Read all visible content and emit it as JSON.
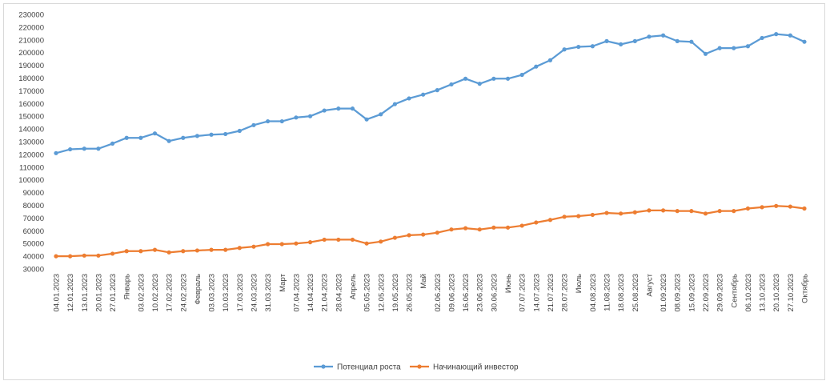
{
  "chart_data": {
    "type": "line",
    "title": "",
    "xlabel": "",
    "ylabel": "",
    "ylim": [
      30000,
      230000
    ],
    "ytick_step": 10000,
    "grid": false,
    "legend_position": "bottom",
    "categories": [
      "04.01.2023",
      "12.01.2023",
      "13.01.2023",
      "20.01.2023",
      "27.01.2023",
      "Январь",
      "03.02.2023",
      "10.02.2023",
      "17.02.2023",
      "24.02.2023",
      "Февраль",
      "03.03.2023",
      "10.03.2023",
      "17.03.2023",
      "24.03.2023",
      "31.03.2023",
      "Март",
      "07.04.2023",
      "14.04.2023",
      "21.04.2023",
      "28.04.2023",
      "Апрель",
      "05.05.2023",
      "12.05.2023",
      "19.05.2023",
      "26.05.2023",
      "Май",
      "02.06.2023",
      "09.06.2023",
      "16.06.2023",
      "23.06.2023",
      "30.06.2023",
      "Июнь",
      "07.07.2023",
      "14.07.2023",
      "21.07.2023",
      "28.07.2023",
      "Июль",
      "04.08.2023",
      "11.08.2023",
      "18.08.2023",
      "25.08.2023",
      "Август",
      "01.09.2023",
      "08.09.2023",
      "15.09.2023",
      "22.09.2023",
      "29.09.2023",
      "Сентябрь",
      "06.10.2023",
      "13.10.2023",
      "20.10.2023",
      "27.10.2023",
      "Октябрь"
    ],
    "series": [
      {
        "name": "Потенциал роста",
        "color": "#5b9bd5",
        "values": [
          121000,
          124000,
          124500,
          124500,
          128500,
          133000,
          133000,
          136500,
          130500,
          133000,
          134500,
          135500,
          136000,
          138500,
          143000,
          146000,
          146000,
          149000,
          150000,
          154500,
          156000,
          156000,
          147500,
          151500,
          159500,
          164000,
          167000,
          170500,
          175000,
          179500,
          175500,
          179500,
          179500,
          182500,
          189000,
          194000,
          202500,
          204500,
          205000,
          209000,
          206500,
          209000,
          212500,
          213500,
          209000,
          208500,
          199000,
          203500,
          203500,
          205000,
          211500,
          214500,
          213500,
          208500
        ]
      },
      {
        "name": "Начинающий инвестор",
        "color": "#ed7d31",
        "values": [
          40000,
          40000,
          40500,
          40500,
          42000,
          44000,
          44000,
          45000,
          43000,
          44000,
          44500,
          45000,
          45000,
          46500,
          47500,
          49500,
          49500,
          50000,
          51000,
          53000,
          53000,
          53000,
          50000,
          51500,
          54500,
          56500,
          57000,
          58500,
          61000,
          62000,
          61000,
          62500,
          62500,
          64000,
          66500,
          68500,
          71000,
          71500,
          72500,
          74000,
          73500,
          74500,
          76000,
          76000,
          75500,
          75500,
          73500,
          75500,
          75500,
          77500,
          78500,
          79500,
          79000,
          77500
        ]
      }
    ]
  }
}
